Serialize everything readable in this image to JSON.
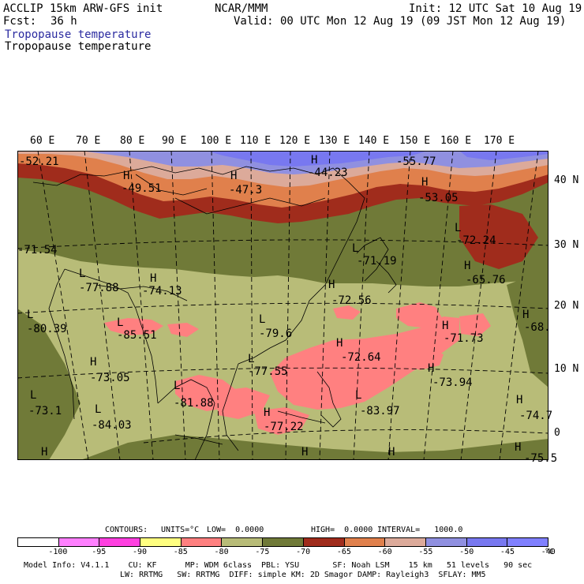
{
  "header": {
    "model": "ACCLIP 15km ARW-GFS init",
    "org": "NCAR/MMM",
    "init": "Init: 12 UTC Sat 10 Aug 19",
    "fcst_label": "Fcst:",
    "fcst_value": "36 h",
    "valid": "Valid: 00 UTC Mon 12 Aug 19 (09 JST Mon 12 Aug 19)",
    "field_title_1": "Tropopause temperature",
    "field_title_2": "Tropopause temperature"
  },
  "map": {
    "longitude_labels": [
      "60 E",
      "70 E",
      "80 E",
      "90 E",
      "100 E",
      "110 E",
      "120 E",
      "130 E",
      "140 E",
      "150 E",
      "160 E",
      "170 E"
    ],
    "latitude_labels": [
      "40 N",
      "30 N",
      "20 N",
      "10 N",
      "0"
    ],
    "labels": [
      {
        "type": "value",
        "text": "-52.21"
      },
      {
        "type": "H",
        "text": "H"
      },
      {
        "type": "value",
        "text": "-49.51"
      },
      {
        "type": "H",
        "text": "H"
      },
      {
        "type": "value",
        "text": "-47.3"
      },
      {
        "type": "H",
        "text": "H"
      },
      {
        "type": "value",
        "text": "-44.23"
      },
      {
        "type": "value",
        "text": "-55.77"
      },
      {
        "type": "H",
        "text": "H"
      },
      {
        "type": "value",
        "text": "-53.05"
      },
      {
        "type": "L",
        "text": "L"
      },
      {
        "type": "value",
        "text": "-72.24"
      },
      {
        "type": "value",
        "text": "-71.54"
      },
      {
        "type": "L",
        "text": "L"
      },
      {
        "type": "value",
        "text": "-71.19"
      },
      {
        "type": "H",
        "text": "H"
      },
      {
        "type": "value",
        "text": "-65.76"
      },
      {
        "type": "L",
        "text": "L"
      },
      {
        "type": "value",
        "text": "-77.88"
      },
      {
        "type": "H",
        "text": "H"
      },
      {
        "type": "value",
        "text": "-74.13"
      },
      {
        "type": "H",
        "text": "H"
      },
      {
        "type": "value",
        "text": "-72.56"
      },
      {
        "type": "H",
        "text": "H"
      },
      {
        "type": "value",
        "text": "-68."
      },
      {
        "type": "L",
        "text": "L"
      },
      {
        "type": "value",
        "text": "-80.39"
      },
      {
        "type": "L",
        "text": "L"
      },
      {
        "type": "value",
        "text": "-85.51"
      },
      {
        "type": "L",
        "text": "L"
      },
      {
        "type": "value",
        "text": "-79.6"
      },
      {
        "type": "H",
        "text": "H"
      },
      {
        "type": "value",
        "text": "-72.64"
      },
      {
        "type": "H",
        "text": "H"
      },
      {
        "type": "value",
        "text": "-71.73"
      },
      {
        "type": "H",
        "text": "H"
      },
      {
        "type": "value",
        "text": "-73.05"
      },
      {
        "type": "L",
        "text": "L"
      },
      {
        "type": "value",
        "text": "-77.55"
      },
      {
        "type": "H",
        "text": "H"
      },
      {
        "type": "value",
        "text": "-73.94"
      },
      {
        "type": "L",
        "text": "L"
      },
      {
        "type": "value",
        "text": "-81.88"
      },
      {
        "type": "L",
        "text": "L"
      },
      {
        "type": "value",
        "text": "-83.97"
      },
      {
        "type": "L",
        "text": "L"
      },
      {
        "type": "value",
        "text": "-73.1"
      },
      {
        "type": "H",
        "text": "H"
      },
      {
        "type": "value",
        "text": "-74.7"
      },
      {
        "type": "L",
        "text": "L"
      },
      {
        "type": "value",
        "text": "-84.03"
      },
      {
        "type": "H",
        "text": "H"
      },
      {
        "type": "value",
        "text": "-77.22"
      },
      {
        "type": "H",
        "text": "H"
      },
      {
        "type": "H",
        "text": "H"
      },
      {
        "type": "H",
        "text": "H"
      },
      {
        "type": "H",
        "text": "H"
      },
      {
        "type": "value",
        "text": "-75.5"
      }
    ],
    "colors": {
      "c_le_100": "#ffffff",
      "c_100_95": "#ff80ff",
      "c_95_90": "#ff40e0",
      "c_90_85": "#ffff80",
      "c_85_80": "#ff8080",
      "c_80_75": "#b8bc78",
      "c_75_70": "#707a38",
      "c_70_65": "#a02c1c",
      "c_65_60": "#e0804c",
      "c_60_55": "#dcaa9a",
      "c_55_50": "#9090e0",
      "c_50_45": "#7878f0",
      "c_45_40": "#8080ff",
      "c_ge_40": "#8888ff"
    }
  },
  "contours": {
    "label": "CONTOURS:",
    "units": "UNITS=°C",
    "low": "LOW=  0.0000",
    "high": "HIGH=  0.0000",
    "interval": "INTERVAL=   1000.0"
  },
  "colorbar": {
    "colors": [
      "#ffffff",
      "#ff80ff",
      "#ff40e0",
      "#ffff80",
      "#ff8080",
      "#b8bc78",
      "#707a38",
      "#a02c1c",
      "#e0804c",
      "#dcaa9a",
      "#9090e0",
      "#7878f0",
      "#8080ff"
    ],
    "ticks": [
      "-100",
      "-95",
      "-90",
      "-85",
      "-80",
      "-75",
      "-70",
      "-65",
      "-60",
      "-55",
      "-50",
      "-45",
      "-40"
    ],
    "unit": "°C"
  },
  "model_info": {
    "line1": "Model Info: V4.1.1    CU: KF      MP: WDM 6class  PBL: YSU       SF: Noah LSM    15 km   51 levels   90 sec",
    "line2": "LW: RRTMG   SW: RRTMG  DIFF: simple KM: 2D Smagor DAMP: Rayleigh3  SFLAY: MM5"
  }
}
